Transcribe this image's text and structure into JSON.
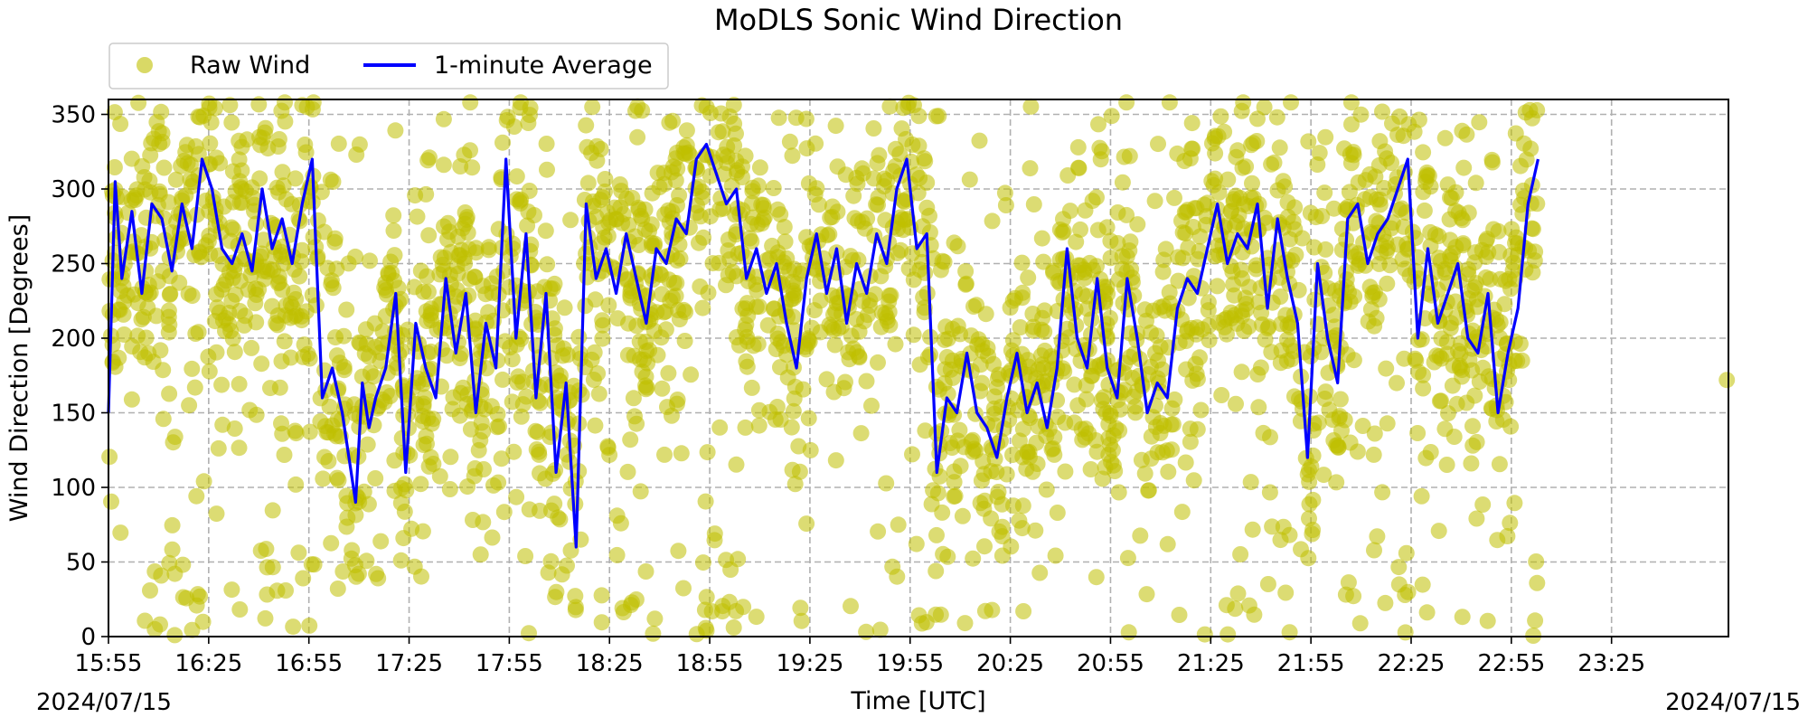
{
  "chart_data": {
    "type": "line",
    "title": "MoDLS Sonic Wind Direction",
    "xlabel": "Time [UTC]",
    "ylabel": "Wind Direction [Degrees]",
    "date_left": "2024/07/15",
    "date_right": "2024/07/15",
    "x_tick_labels": [
      "15:55",
      "16:25",
      "16:55",
      "17:25",
      "17:55",
      "18:25",
      "18:55",
      "19:25",
      "19:55",
      "20:25",
      "20:55",
      "21:25",
      "21:55",
      "22:25",
      "22:55",
      "23:25"
    ],
    "x_tick_minutes": [
      955,
      985,
      1015,
      1045,
      1075,
      1105,
      1135,
      1165,
      1195,
      1225,
      1255,
      1285,
      1315,
      1345,
      1375,
      1405
    ],
    "xlim_minutes": [
      955,
      1440
    ],
    "y_ticks": [
      0,
      50,
      100,
      150,
      200,
      250,
      300,
      350
    ],
    "ylim": [
      0,
      360
    ],
    "grid": true,
    "legend": {
      "placement": "top-left, above plot",
      "entries": [
        "Raw Wind",
        "1-minute Average"
      ]
    },
    "colors": {
      "raw": "#bfbf00",
      "average": "#0000ff"
    },
    "series": [
      {
        "name": "1-minute Average",
        "x_minutes": [
          955,
          957,
          959,
          962,
          965,
          968,
          971,
          974,
          977,
          980,
          983,
          986,
          989,
          992,
          995,
          998,
          1001,
          1004,
          1007,
          1010,
          1013,
          1016,
          1019,
          1022,
          1025,
          1027,
          1029,
          1031,
          1033,
          1035,
          1038,
          1041,
          1044,
          1047,
          1050,
          1053,
          1056,
          1059,
          1062,
          1065,
          1068,
          1071,
          1074,
          1077,
          1080,
          1083,
          1086,
          1089,
          1092,
          1095,
          1098,
          1101,
          1104,
          1107,
          1110,
          1113,
          1116,
          1119,
          1122,
          1125,
          1128,
          1131,
          1134,
          1137,
          1140,
          1143,
          1146,
          1149,
          1152,
          1155,
          1158,
          1161,
          1164,
          1167,
          1170,
          1173,
          1176,
          1179,
          1182,
          1185,
          1188,
          1191,
          1194,
          1197,
          1200,
          1203,
          1206,
          1209,
          1212,
          1215,
          1218,
          1221,
          1224,
          1227,
          1230,
          1233,
          1236,
          1239,
          1242,
          1245,
          1248,
          1251,
          1254,
          1257,
          1260,
          1263,
          1266,
          1269,
          1272,
          1275,
          1278,
          1281,
          1284,
          1287,
          1290,
          1293,
          1296,
          1299,
          1302,
          1305,
          1308,
          1311,
          1314,
          1317,
          1320,
          1323,
          1326,
          1329,
          1332,
          1335,
          1338,
          1341,
          1344,
          1347,
          1350,
          1353,
          1356,
          1359,
          1362,
          1365,
          1368,
          1371,
          1374,
          1377,
          1380,
          1383
        ],
        "y": [
          150,
          305,
          240,
          285,
          230,
          290,
          280,
          245,
          290,
          260,
          320,
          300,
          260,
          250,
          270,
          245,
          300,
          260,
          280,
          250,
          290,
          320,
          160,
          180,
          150,
          120,
          90,
          170,
          140,
          160,
          180,
          230,
          110,
          210,
          180,
          160,
          240,
          190,
          230,
          150,
          210,
          180,
          320,
          200,
          270,
          160,
          230,
          110,
          170,
          60,
          290,
          240,
          260,
          230,
          270,
          240,
          210,
          260,
          250,
          280,
          270,
          320,
          330,
          310,
          290,
          300,
          240,
          260,
          230,
          250,
          210,
          180,
          240,
          270,
          230,
          260,
          210,
          250,
          230,
          270,
          250,
          300,
          320,
          260,
          270,
          110,
          160,
          150,
          190,
          150,
          140,
          120,
          160,
          190,
          150,
          170,
          140,
          180,
          260,
          200,
          180,
          240,
          180,
          160,
          240,
          200,
          150,
          170,
          160,
          220,
          240,
          230,
          260,
          290,
          250,
          270,
          260,
          290,
          220,
          280,
          240,
          210,
          120,
          250,
          200,
          170,
          280,
          290,
          250,
          270,
          280,
          300,
          320,
          200,
          260,
          210,
          230,
          250,
          200,
          190,
          230,
          150,
          190,
          220,
          290,
          320
        ]
      },
      {
        "name": "Raw Wind",
        "generated_from": "1-minute Average"
      }
    ]
  }
}
